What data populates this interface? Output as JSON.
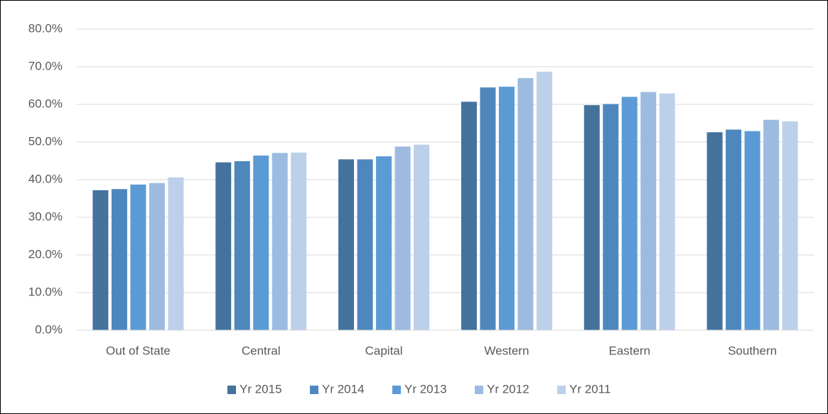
{
  "chart_data": {
    "type": "bar",
    "categories": [
      "Out of State",
      "Central",
      "Capital",
      "Western",
      "Eastern",
      "Southern"
    ],
    "series": [
      {
        "name": "Yr 2015",
        "color": "#44729d",
        "values": [
          37.2,
          44.6,
          45.4,
          60.7,
          59.8,
          52.6
        ]
      },
      {
        "name": "Yr 2014",
        "color": "#4e87bd",
        "values": [
          37.5,
          44.9,
          45.4,
          64.5,
          60.1,
          53.3
        ]
      },
      {
        "name": "Yr 2013",
        "color": "#5b9bd5",
        "values": [
          38.7,
          46.4,
          46.2,
          64.7,
          62.0,
          52.9
        ]
      },
      {
        "name": "Yr 2012",
        "color": "#9dbbe0",
        "values": [
          39.1,
          47.1,
          48.8,
          67.0,
          63.3,
          55.9
        ]
      },
      {
        "name": "Yr 2011",
        "color": "#bdd0ea",
        "values": [
          40.6,
          47.2,
          49.3,
          68.7,
          62.9,
          55.5
        ]
      }
    ],
    "ylim": [
      0,
      80
    ],
    "yticks": [
      {
        "value": 0,
        "label": "0.0%"
      },
      {
        "value": 10,
        "label": "10.0%"
      },
      {
        "value": 20,
        "label": "20.0%"
      },
      {
        "value": 30,
        "label": "30.0%"
      },
      {
        "value": 40,
        "label": "40.0%"
      },
      {
        "value": 50,
        "label": "50.0%"
      },
      {
        "value": 60,
        "label": "60.0%"
      },
      {
        "value": 70,
        "label": "70.0%"
      },
      {
        "value": 80,
        "label": "80.0%"
      }
    ],
    "grid": true,
    "legend": "bottom"
  }
}
